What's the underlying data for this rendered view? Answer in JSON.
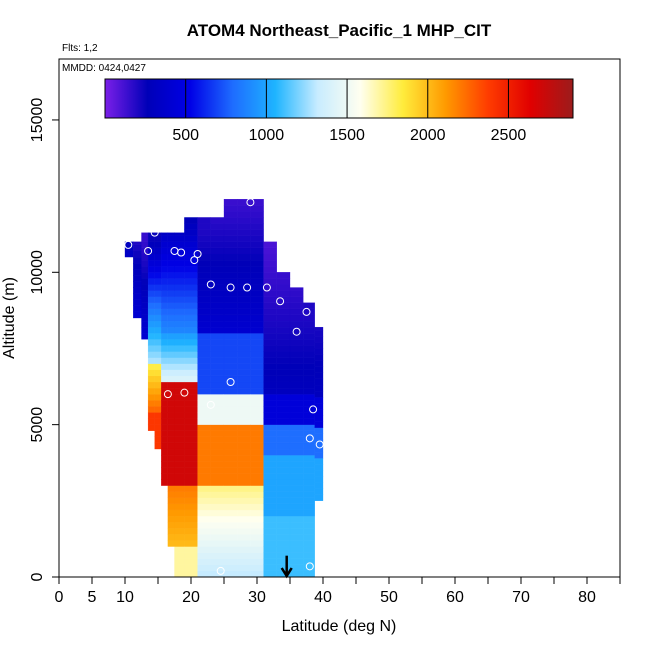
{
  "chart_data": {
    "type": "heatmap",
    "title": "ATOM4 Northeast_Pacific_1 MHP_CIT",
    "flights_note": "Flts: 1,2",
    "dates_note": "MMDD: 0424,0427",
    "xlabel": "Latitude (deg N)",
    "ylabel": "Altitude (m)",
    "xlim": [
      0,
      85
    ],
    "ylim": [
      0,
      17000
    ],
    "x_ticks": [
      0,
      5,
      10,
      20,
      30,
      40,
      50,
      60,
      70,
      80
    ],
    "x_minor_ticks": [
      15,
      25,
      35,
      45,
      55,
      65,
      75,
      85
    ],
    "y_ticks": [
      0,
      5000,
      10000,
      15000
    ],
    "colorbar": {
      "min": 0,
      "max": 2900,
      "ticks": [
        500,
        1000,
        1500,
        2000,
        2500
      ],
      "colors": [
        "#7b1fe8",
        "#0000b8",
        "#0000e6",
        "#1e6cff",
        "#1eb4ff",
        "#c8ecff",
        "#fffff0",
        "#ffec3c",
        "#ff9a00",
        "#ff3c00",
        "#e00000",
        "#9c1c1c"
      ]
    },
    "columns": [
      {
        "lat": 10.5,
        "alt": [
          10500,
          11000
        ],
        "top_value": 300,
        "profile": "low"
      },
      {
        "lat": 12.0,
        "alt": [
          8500,
          11000
        ],
        "top_value": 200,
        "profile": "low"
      },
      {
        "lat": 13.0,
        "alt": [
          7800,
          11300
        ],
        "top_value": 150,
        "profile": "low"
      },
      {
        "lat": 14.0,
        "alt": [
          4800,
          11300
        ],
        "top_value": 250,
        "profile": "edge"
      },
      {
        "lat": 15.0,
        "alt": [
          4200,
          11300
        ],
        "top_value": 250,
        "profile": "edge"
      },
      {
        "lat": 16.0,
        "alt": [
          3000,
          11300
        ],
        "top_value": 300,
        "profile": "core"
      },
      {
        "lat": 17.0,
        "alt": [
          1000,
          11300
        ],
        "top_value": 300,
        "profile": "core"
      },
      {
        "lat": 18.0,
        "alt": [
          0,
          11300
        ],
        "top_value": 300,
        "profile": "core"
      },
      {
        "lat": 20.0,
        "alt": [
          0,
          11800
        ],
        "top_value": 250,
        "profile": "core"
      },
      {
        "lat": 22.0,
        "alt": [
          0,
          11800
        ],
        "top_value": 200,
        "profile": "mid"
      },
      {
        "lat": 24.0,
        "alt": [
          0,
          11800
        ],
        "top_value": 150,
        "profile": "mid"
      },
      {
        "lat": 26.0,
        "alt": [
          0,
          12400
        ],
        "top_value": 100,
        "profile": "mid"
      },
      {
        "lat": 28.0,
        "alt": [
          0,
          12400
        ],
        "top_value": 80,
        "profile": "mid"
      },
      {
        "lat": 30.0,
        "alt": [
          0,
          12400
        ],
        "top_value": 80,
        "profile": "mid"
      },
      {
        "lat": 32.0,
        "alt": [
          0,
          11000
        ],
        "top_value": 100,
        "profile": "south"
      },
      {
        "lat": 34.0,
        "alt": [
          0,
          10000
        ],
        "top_value": 150,
        "profile": "south"
      },
      {
        "lat": 36.0,
        "alt": [
          0,
          9500
        ],
        "top_value": 150,
        "profile": "south"
      },
      {
        "lat": 38.0,
        "alt": [
          0,
          9000
        ],
        "top_value": 200,
        "profile": "south"
      },
      {
        "lat": 39.5,
        "alt": [
          2500,
          8200
        ],
        "top_value": 200,
        "profile": "south"
      }
    ],
    "observation_points": [
      {
        "lat": 10.5,
        "alt": 10900
      },
      {
        "lat": 14.5,
        "alt": 11300
      },
      {
        "lat": 13.5,
        "alt": 10700
      },
      {
        "lat": 17.5,
        "alt": 10700
      },
      {
        "lat": 21.0,
        "alt": 10600
      },
      {
        "lat": 20.5,
        "alt": 10400
      },
      {
        "lat": 18.5,
        "alt": 10650
      },
      {
        "lat": 29.0,
        "alt": 12300
      },
      {
        "lat": 32.5,
        "alt": 12300
      },
      {
        "lat": 23.0,
        "alt": 9600
      },
      {
        "lat": 26.0,
        "alt": 9500
      },
      {
        "lat": 28.5,
        "alt": 9500
      },
      {
        "lat": 31.5,
        "alt": 9500
      },
      {
        "lat": 33.5,
        "alt": 9050
      },
      {
        "lat": 37.5,
        "alt": 8700
      },
      {
        "lat": 36.0,
        "alt": 8050
      },
      {
        "lat": 26.0,
        "alt": 6400
      },
      {
        "lat": 19.0,
        "alt": 6050
      },
      {
        "lat": 16.5,
        "alt": 6000
      },
      {
        "lat": 23.0,
        "alt": 5650
      },
      {
        "lat": 38.5,
        "alt": 5500
      },
      {
        "lat": 38.0,
        "alt": 4550
      },
      {
        "lat": 39.5,
        "alt": 4350
      },
      {
        "lat": 24.5,
        "alt": 200
      },
      {
        "lat": 38.0,
        "alt": 350
      }
    ],
    "arrow": {
      "lat": 34.5,
      "alt_from": 700,
      "alt_to": 0
    }
  }
}
